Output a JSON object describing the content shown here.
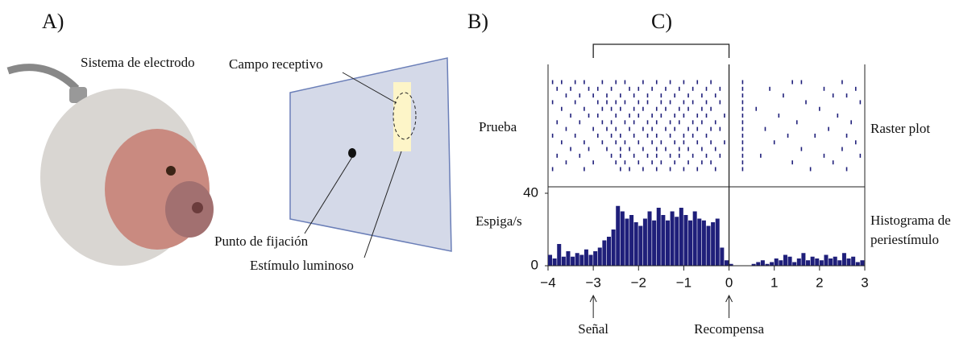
{
  "panel_a": {
    "label": "A)",
    "electrode": "Sistema de electrodo",
    "receptive_field": "Campo receptivo",
    "fixation": "Punto de fijación",
    "stimulus": "Estímulo luminoso"
  },
  "panel_b": {
    "label": "B)"
  },
  "panel_c": {
    "label": "C)"
  },
  "chart_data": [
    {
      "type": "raster",
      "ylabel": "Prueba",
      "side_label": "Raster plot",
      "color": "#1f1f7a",
      "bracket": [
        -3,
        0
      ],
      "trials": [
        [
          -3.9,
          -3.7,
          -3.4,
          -3.2,
          -2.8,
          -2.5,
          -2.3,
          -1.9,
          -1.6,
          -1.3,
          -1.0,
          -0.7,
          -0.4,
          0.3,
          1.4,
          1.6,
          2.5
        ],
        [
          -3.8,
          -3.5,
          -3.1,
          -2.9,
          -2.6,
          -2.2,
          -2.0,
          -1.7,
          -1.4,
          -1.1,
          -0.8,
          -0.5,
          -0.2,
          0.3,
          0.9,
          2.1,
          2.8
        ],
        [
          -3.6,
          -3.3,
          -3.0,
          -2.7,
          -2.4,
          -2.1,
          -1.8,
          -1.5,
          -1.2,
          -0.9,
          -0.6,
          -0.3,
          0.3,
          1.2,
          2.3,
          2.6
        ],
        [
          -3.9,
          -3.4,
          -2.9,
          -2.7,
          -2.5,
          -2.3,
          -2.0,
          -1.8,
          -1.5,
          -1.3,
          -1.0,
          -0.8,
          -0.5,
          -0.2,
          0.3,
          1.7,
          2.9
        ],
        [
          -3.7,
          -3.2,
          -2.8,
          -2.6,
          -2.4,
          -2.1,
          -1.9,
          -1.6,
          -1.4,
          -1.1,
          -0.9,
          -0.6,
          -0.4,
          0.3,
          0.6,
          2.0
        ],
        [
          -3.5,
          -3.1,
          -2.9,
          -2.5,
          -2.2,
          -2.0,
          -1.7,
          -1.5,
          -1.2,
          -1.0,
          -0.7,
          -0.5,
          -0.1,
          0.3,
          1.1,
          2.4
        ],
        [
          -3.8,
          -3.3,
          -2.8,
          -2.6,
          -2.3,
          -2.1,
          -1.8,
          -1.6,
          -1.3,
          -1.1,
          -0.8,
          -0.6,
          -0.3,
          0.3,
          1.5,
          2.7
        ],
        [
          -3.6,
          -3.0,
          -2.7,
          -2.5,
          -2.2,
          -1.9,
          -1.7,
          -1.4,
          -1.2,
          -0.9,
          -0.7,
          -0.4,
          -0.2,
          0.3,
          0.8,
          2.2
        ],
        [
          -3.9,
          -3.4,
          -2.9,
          -2.6,
          -2.4,
          -2.1,
          -1.8,
          -1.6,
          -1.3,
          -1.0,
          -0.8,
          -0.5,
          0.3,
          1.3,
          1.9,
          2.6
        ],
        [
          -3.7,
          -3.2,
          -2.8,
          -2.5,
          -2.3,
          -2.0,
          -1.7,
          -1.5,
          -1.2,
          -1.0,
          -0.7,
          -0.4,
          -0.1,
          0.3,
          1.0,
          2.8
        ],
        [
          -3.5,
          -3.1,
          -2.7,
          -2.4,
          -2.2,
          -1.9,
          -1.6,
          -1.4,
          -1.1,
          -0.9,
          -0.6,
          -0.3,
          0.3,
          1.6,
          2.5
        ],
        [
          -3.8,
          -3.3,
          -2.6,
          -2.4,
          -2.1,
          -1.8,
          -1.6,
          -1.3,
          -1.1,
          -0.8,
          -0.5,
          -0.2,
          0.3,
          0.7,
          2.1,
          2.9
        ],
        [
          -3.6,
          -3.0,
          -2.5,
          -2.3,
          -2.0,
          -1.7,
          -1.5,
          -1.2,
          -0.9,
          -0.6,
          -0.4,
          0.3,
          1.4,
          2.3
        ],
        [
          -3.9,
          -3.2,
          -2.4,
          -2.2,
          -1.9,
          -1.6,
          -1.3,
          -1.0,
          -0.7,
          -0.3,
          0.3,
          1.8,
          2.6
        ]
      ]
    },
    {
      "type": "histogram",
      "ylabel": "Espiga/s",
      "side_label": "Histograma de periestímulo",
      "color": "#1f1f7a",
      "bins": [
        -4,
        -3.9,
        -3.8,
        -3.7,
        -3.6,
        -3.5,
        -3.4,
        -3.3,
        -3.2,
        -3.1,
        -3,
        -2.9,
        -2.8,
        -2.7,
        -2.6,
        -2.5,
        -2.4,
        -2.3,
        -2.2,
        -2.1,
        -2,
        -1.9,
        -1.8,
        -1.7,
        -1.6,
        -1.5,
        -1.4,
        -1.3,
        -1.2,
        -1.1,
        -1,
        -0.9,
        -0.8,
        -0.7,
        -0.6,
        -0.5,
        -0.4,
        -0.3,
        -0.2,
        -0.1,
        0,
        0.1,
        0.2,
        0.3,
        0.4,
        0.5,
        0.6,
        0.7,
        0.8,
        0.9,
        1,
        1.1,
        1.2,
        1.3,
        1.4,
        1.5,
        1.6,
        1.7,
        1.8,
        1.9,
        2,
        2.1,
        2.2,
        2.3,
        2.4,
        2.5,
        2.6,
        2.7,
        2.8,
        2.9,
        3
      ],
      "counts": [
        6,
        4,
        12,
        5,
        8,
        5,
        7,
        6,
        9,
        6,
        8,
        10,
        14,
        16,
        20,
        33,
        30,
        26,
        28,
        24,
        22,
        26,
        30,
        25,
        32,
        28,
        25,
        30,
        27,
        32,
        28,
        25,
        30,
        26,
        25,
        22,
        24,
        26,
        10,
        3,
        1,
        0,
        0,
        0,
        0,
        1,
        2,
        3,
        1,
        2,
        4,
        3,
        6,
        5,
        2,
        4,
        7,
        3,
        5,
        4,
        3,
        6,
        4,
        5,
        3,
        7,
        4,
        5,
        2,
        3
      ],
      "xlim": [
        -4,
        3
      ],
      "ylim": [
        0,
        40
      ],
      "yticks": [
        0,
        40
      ],
      "xticks": [
        {
          "value": -4,
          "label": "−4"
        },
        {
          "value": -3,
          "label": "−3"
        },
        {
          "value": -2,
          "label": "−2"
        },
        {
          "value": -1,
          "label": "−1"
        },
        0,
        1,
        2,
        3
      ],
      "annotations": [
        {
          "text": "Señal",
          "x": -3
        },
        {
          "text": "Recompensa",
          "x": 0
        }
      ]
    }
  ]
}
